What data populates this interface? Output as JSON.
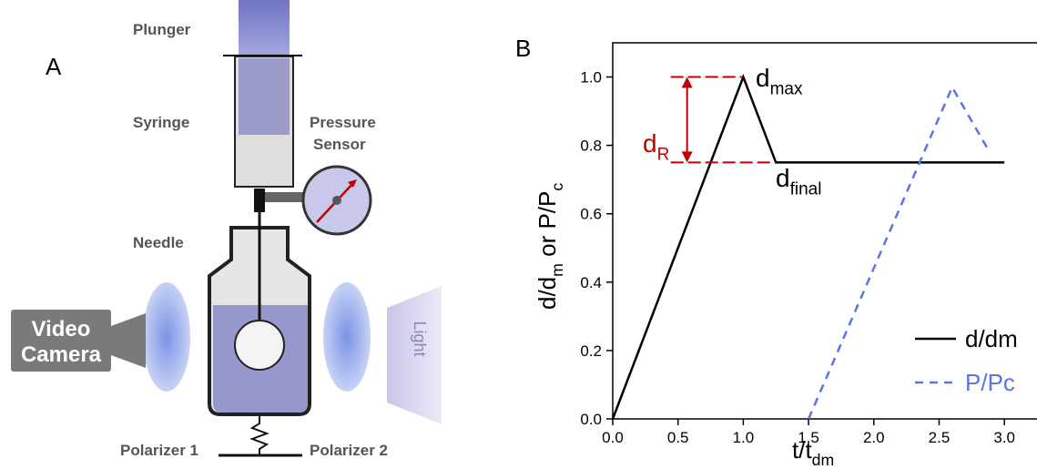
{
  "panel_a": {
    "label": "A",
    "labels": {
      "plunger": "Plunger",
      "syringe": "Syringe",
      "pressure": "Pressure",
      "sensor": "Sensor",
      "needle": "Needle",
      "video": "Video",
      "camera": "Camera",
      "light": "Light",
      "polarizer1": "Polarizer 1",
      "polarizer2": "Polarizer 2"
    }
  },
  "chart_data": {
    "type": "line",
    "panel_label": "B",
    "xlabel": [
      {
        "text": "t/t"
      },
      {
        "sub": "dm"
      }
    ],
    "ylabel": [
      {
        "text": "d/d"
      },
      {
        "sub": "m"
      },
      {
        "text": " or P/P"
      },
      {
        "sub": "c"
      }
    ],
    "xlim": [
      0,
      3.25
    ],
    "ylim": [
      0,
      1.1
    ],
    "xticks": [
      {
        "value": 0,
        "label": "0.0"
      },
      {
        "value": 0.5,
        "label": "0.5"
      },
      {
        "value": 1,
        "label": "1.0"
      },
      {
        "value": 1.5,
        "label": "1.5"
      },
      {
        "value": 2,
        "label": "2.0"
      },
      {
        "value": 2.5,
        "label": "2.5"
      },
      {
        "value": 3,
        "label": "3.0"
      }
    ],
    "yticks": [
      {
        "value": 0,
        "label": "0.0"
      },
      {
        "value": 0.2,
        "label": "0.2"
      },
      {
        "value": 0.4,
        "label": "0.4"
      },
      {
        "value": 0.6,
        "label": "0.6"
      },
      {
        "value": 0.8,
        "label": "0.8"
      },
      {
        "value": 1,
        "label": "1.0"
      }
    ],
    "legend": "lower right",
    "series": [
      {
        "name": "d/dm",
        "color": "#000000",
        "dash": false,
        "x": [
          0,
          1,
          1.25,
          3
        ],
        "values": [
          0,
          1,
          0.75,
          0.75
        ]
      },
      {
        "name": "P/Pc",
        "color": "#5b73e8",
        "dash": true,
        "x": [
          1.5,
          2.6,
          2.88
        ],
        "values": [
          0,
          0.97,
          0.785
        ]
      }
    ],
    "annotations": [
      {
        "color": "#000000",
        "parts": [
          {
            "text": "d"
          },
          {
            "sub": "max"
          }
        ]
      },
      {
        "color": "#c00000",
        "parts": [
          {
            "text": "d"
          },
          {
            "sub": "R"
          }
        ]
      },
      {
        "color": "#000000",
        "parts": [
          {
            "text": "d"
          },
          {
            "sub": "final"
          }
        ]
      }
    ],
    "range_color": "#c00000"
  }
}
